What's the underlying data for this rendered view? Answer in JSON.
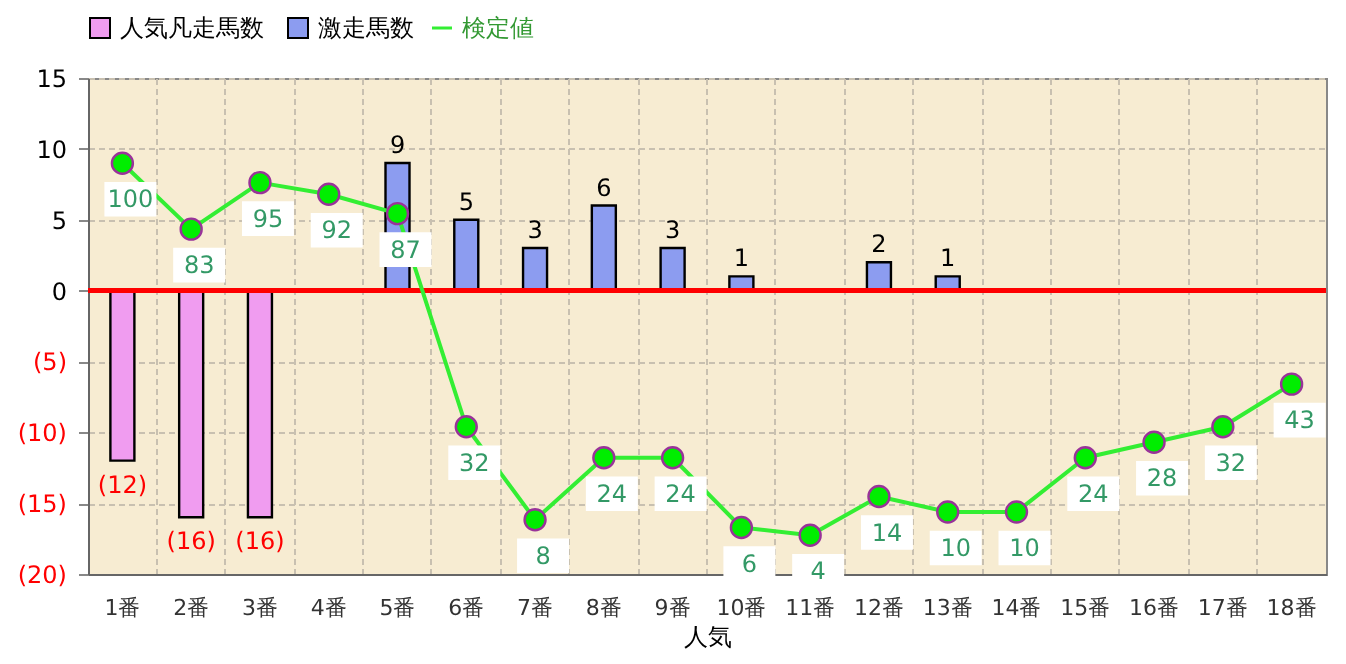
{
  "chart_data": {
    "type": "bar",
    "categories": [
      "1番",
      "2番",
      "3番",
      "4番",
      "5番",
      "6番",
      "7番",
      "8番",
      "9番",
      "10番",
      "11番",
      "12番",
      "13番",
      "14番",
      "15番",
      "16番",
      "17番",
      "18番"
    ],
    "xlabel": "人気",
    "series": [
      {
        "name": "人気凡走馬数",
        "color": "#f09cf0",
        "values": [
          -12,
          -16,
          -16,
          null,
          null,
          null,
          null,
          null,
          null,
          null,
          null,
          null,
          null,
          null,
          null,
          null,
          null,
          null
        ],
        "value_labels": [
          "(12)",
          "(16)",
          "(16)",
          null,
          null,
          null,
          null,
          null,
          null,
          null,
          null,
          null,
          null,
          null,
          null,
          null,
          null,
          null
        ]
      },
      {
        "name": "激走馬数",
        "color": "#8c9cf0",
        "values": [
          null,
          null,
          null,
          null,
          9,
          5,
          3,
          6,
          3,
          1,
          null,
          2,
          1,
          null,
          null,
          null,
          null,
          null
        ],
        "value_labels": [
          null,
          null,
          null,
          null,
          "9",
          "5",
          "3",
          "6",
          "3",
          "1",
          null,
          "2",
          "1",
          null,
          null,
          null,
          null,
          null
        ]
      },
      {
        "name": "検定値",
        "type": "line",
        "axis": "y2",
        "color": "#33ee33",
        "marker": "circle",
        "line_style": "solid",
        "values": [
          100,
          83,
          95,
          92,
          87,
          32,
          8,
          24,
          24,
          6,
          4,
          14,
          10,
          10,
          24,
          28,
          32,
          43
        ],
        "value_labels": [
          "100",
          "83",
          "95",
          "92",
          "87",
          "32",
          "8",
          "24",
          "24",
          "6",
          "4",
          "14",
          "10",
          "10",
          "24",
          "28",
          "32",
          "43"
        ]
      }
    ],
    "ylim": [
      -20,
      15
    ],
    "yticks": [
      {
        "value": -20,
        "label": "(20)"
      },
      {
        "value": -15,
        "label": "(15)"
      },
      {
        "value": -10,
        "label": "(10)"
      },
      {
        "value": -5,
        "label": "(5)"
      },
      0,
      5,
      10,
      15
    ],
    "y2lim": [
      -6,
      122
    ],
    "ref_lines": [
      {
        "axis": "y",
        "value": 0,
        "color": "#ff0000"
      }
    ],
    "grid": true,
    "legend": "top"
  }
}
